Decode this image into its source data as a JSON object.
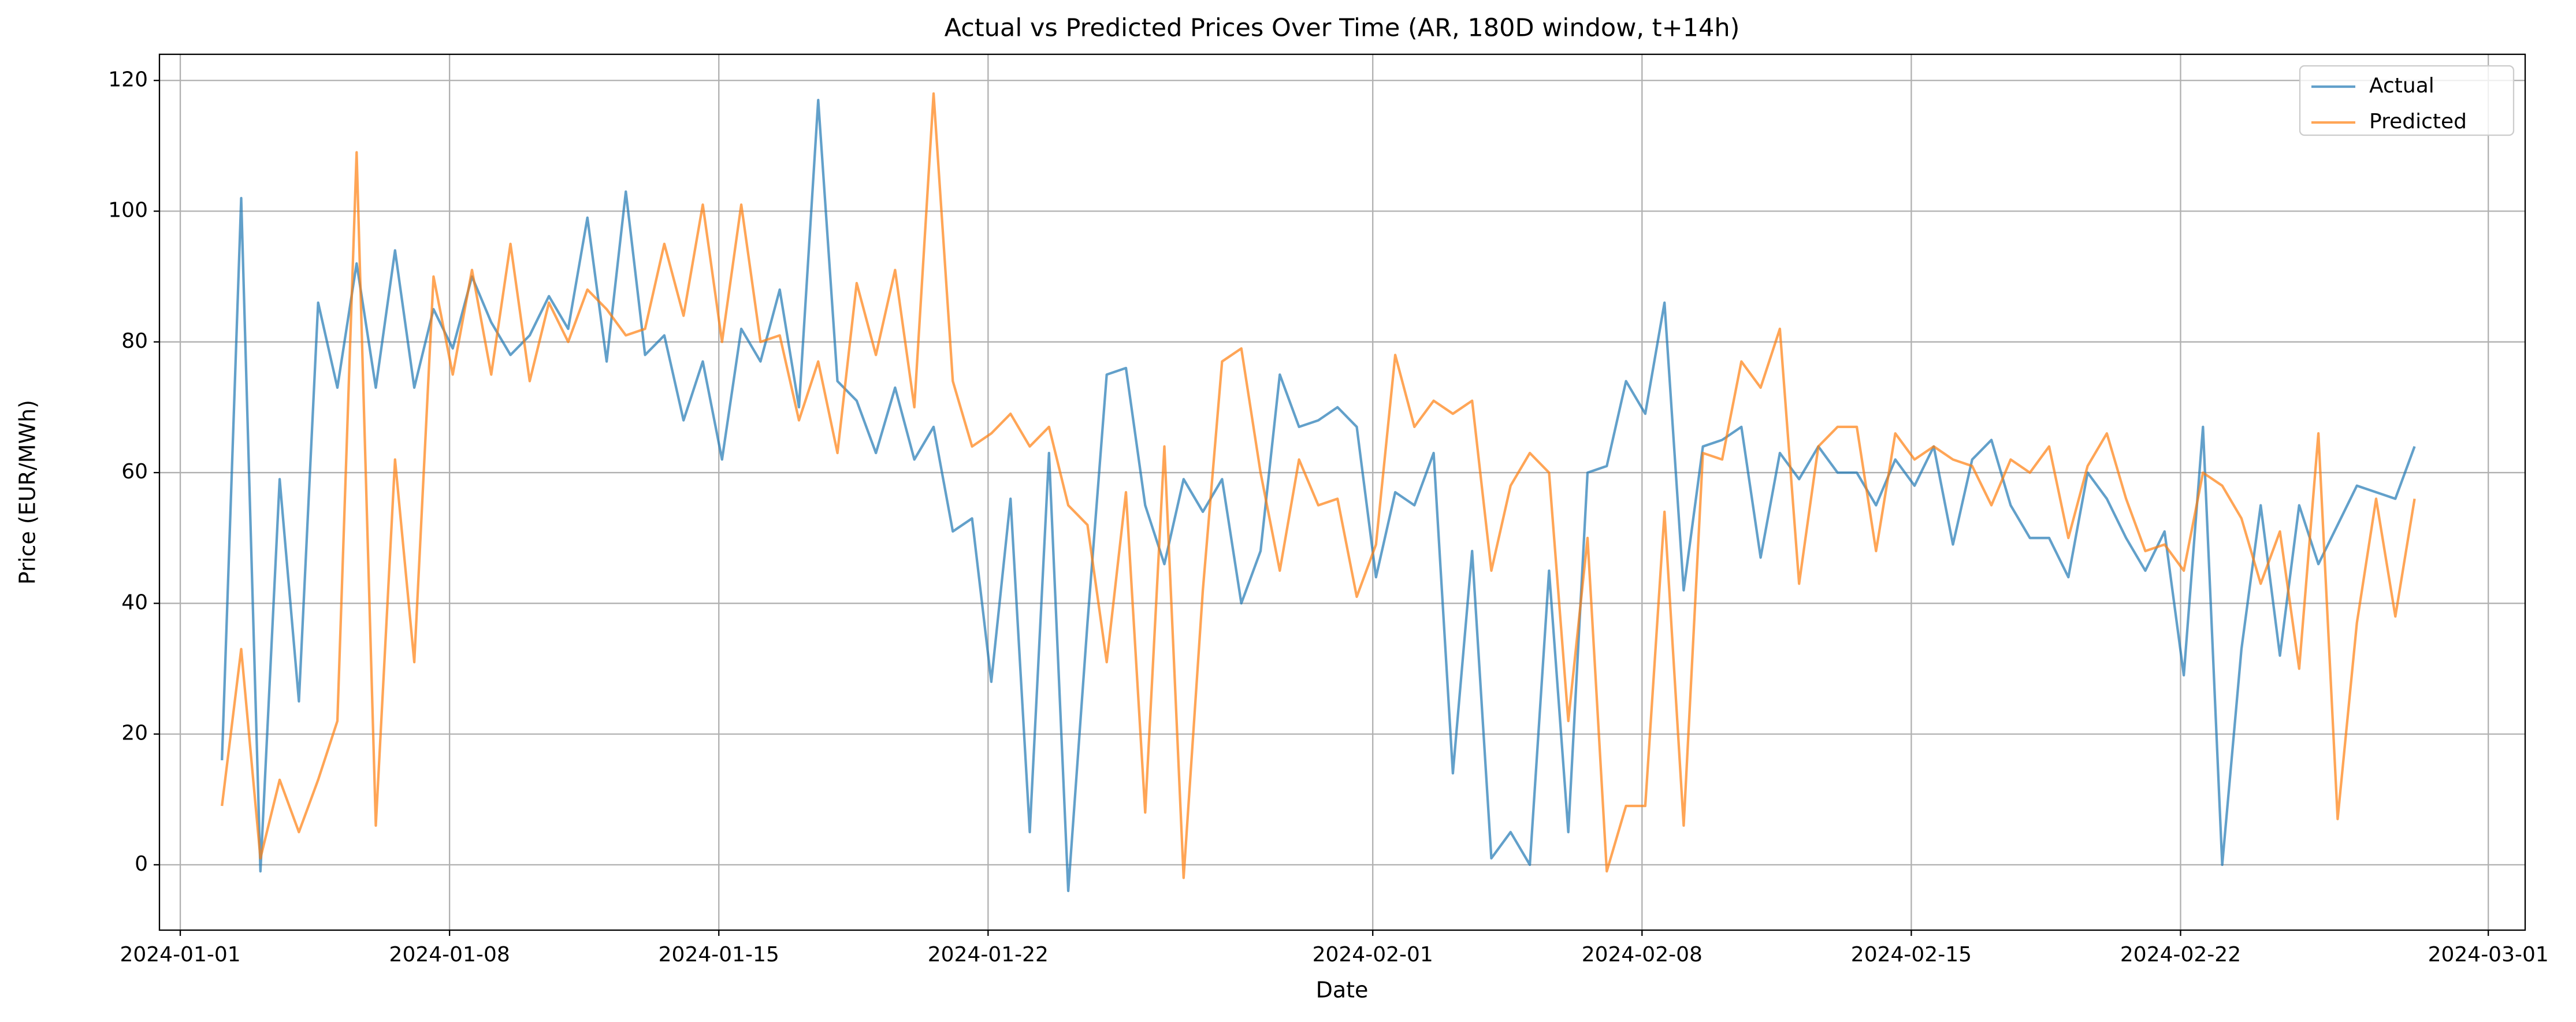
{
  "chart_data": {
    "type": "line",
    "title": "Actual vs Predicted Prices Over Time (AR, 180D window, t+14h)",
    "x_label": "Date",
    "y_label": "Price (EUR/MWh)",
    "grid": true,
    "legend": "upper right",
    "alpha": 0.7,
    "xlim": [
      "2023-12-31 11:00",
      "2024-03-01 23:00"
    ],
    "ylim": [
      -10,
      124
    ],
    "xticks": [
      "2024-01-01",
      "2024-01-08",
      "2024-01-15",
      "2024-01-22",
      "2024-02-01",
      "2024-02-08",
      "2024-02-15",
      "2024-02-22",
      "2024-03-01"
    ],
    "yticks": [
      0,
      20,
      40,
      60,
      80,
      100,
      120
    ],
    "x": [
      "2024-01-02 02:00",
      "2024-01-02 14:00",
      "2024-01-03 02:00",
      "2024-01-03 14:00",
      "2024-01-04 02:00",
      "2024-01-04 14:00",
      "2024-01-05 02:00",
      "2024-01-05 14:00",
      "2024-01-06 02:00",
      "2024-01-06 14:00",
      "2024-01-07 02:00",
      "2024-01-07 14:00",
      "2024-01-08 02:00",
      "2024-01-08 14:00",
      "2024-01-09 02:00",
      "2024-01-09 14:00",
      "2024-01-10 02:00",
      "2024-01-10 14:00",
      "2024-01-11 02:00",
      "2024-01-11 14:00",
      "2024-01-12 02:00",
      "2024-01-12 14:00",
      "2024-01-13 02:00",
      "2024-01-13 14:00",
      "2024-01-14 02:00",
      "2024-01-14 14:00",
      "2024-01-15 02:00",
      "2024-01-15 14:00",
      "2024-01-16 02:00",
      "2024-01-16 14:00",
      "2024-01-17 02:00",
      "2024-01-17 14:00",
      "2024-01-18 02:00",
      "2024-01-18 14:00",
      "2024-01-19 02:00",
      "2024-01-19 14:00",
      "2024-01-20 02:00",
      "2024-01-20 14:00",
      "2024-01-21 02:00",
      "2024-01-21 14:00",
      "2024-01-22 02:00",
      "2024-01-22 14:00",
      "2024-01-23 02:00",
      "2024-01-23 14:00",
      "2024-01-24 02:00",
      "2024-01-24 14:00",
      "2024-01-25 02:00",
      "2024-01-25 14:00",
      "2024-01-26 02:00",
      "2024-01-26 14:00",
      "2024-01-27 02:00",
      "2024-01-27 14:00",
      "2024-01-28 02:00",
      "2024-01-28 14:00",
      "2024-01-29 02:00",
      "2024-01-29 14:00",
      "2024-01-30 02:00",
      "2024-01-30 14:00",
      "2024-01-31 02:00",
      "2024-01-31 14:00",
      "2024-02-01 02:00",
      "2024-02-01 14:00",
      "2024-02-02 02:00",
      "2024-02-02 14:00",
      "2024-02-03 02:00",
      "2024-02-03 14:00",
      "2024-02-04 02:00",
      "2024-02-04 14:00",
      "2024-02-05 02:00",
      "2024-02-05 14:00",
      "2024-02-06 02:00",
      "2024-02-06 14:00",
      "2024-02-07 02:00",
      "2024-02-07 14:00",
      "2024-02-08 02:00",
      "2024-02-08 14:00",
      "2024-02-09 02:00",
      "2024-02-09 14:00",
      "2024-02-10 02:00",
      "2024-02-10 14:00",
      "2024-02-11 02:00",
      "2024-02-11 14:00",
      "2024-02-12 02:00",
      "2024-02-12 14:00",
      "2024-02-13 02:00",
      "2024-02-13 14:00",
      "2024-02-14 02:00",
      "2024-02-14 14:00",
      "2024-02-15 02:00",
      "2024-02-15 14:00",
      "2024-02-16 02:00",
      "2024-02-16 14:00",
      "2024-02-17 02:00",
      "2024-02-17 14:00",
      "2024-02-18 02:00",
      "2024-02-18 14:00",
      "2024-02-19 02:00",
      "2024-02-19 14:00",
      "2024-02-20 02:00",
      "2024-02-20 14:00",
      "2024-02-21 02:00",
      "2024-02-21 14:00",
      "2024-02-22 02:00",
      "2024-02-22 14:00",
      "2024-02-23 02:00",
      "2024-02-23 14:00",
      "2024-02-24 02:00",
      "2024-02-24 14:00",
      "2024-02-25 02:00",
      "2024-02-25 14:00",
      "2024-02-26 02:00",
      "2024-02-26 14:00",
      "2024-02-27 02:00",
      "2024-02-27 14:00",
      "2024-02-28 02:00"
    ],
    "series": [
      {
        "name": "Actual",
        "color": "#1f77b4",
        "values": [
          16,
          102,
          -1,
          59,
          25,
          86,
          73,
          92,
          73,
          94,
          73,
          85,
          79,
          90,
          83,
          78,
          81,
          87,
          82,
          99,
          77,
          103,
          78,
          81,
          68,
          77,
          62,
          82,
          77,
          88,
          70,
          117,
          74,
          71,
          63,
          73,
          62,
          67,
          51,
          53,
          28,
          56,
          5,
          63,
          -4,
          37,
          75,
          76,
          55,
          46,
          59,
          54,
          59,
          40,
          48,
          75,
          67,
          68,
          70,
          67,
          44,
          57,
          55,
          63,
          14,
          48,
          1,
          5,
          0,
          45,
          5,
          60,
          61,
          74,
          69,
          86,
          42,
          64,
          65,
          67,
          47,
          63,
          59,
          64,
          60,
          60,
          55,
          62,
          58,
          64,
          49,
          62,
          65,
          55,
          50,
          50,
          44,
          60,
          56,
          50,
          45,
          51,
          29,
          67,
          0,
          33,
          55,
          32,
          55,
          46,
          52,
          58,
          57,
          56,
          64
        ]
      },
      {
        "name": "Predicted",
        "color": "#ff7f0e",
        "values": [
          9,
          33,
          1,
          13,
          5,
          13,
          22,
          109,
          6,
          62,
          31,
          90,
          75,
          91,
          75,
          95,
          74,
          86,
          80,
          88,
          85,
          81,
          82,
          95,
          84,
          101,
          80,
          101,
          80,
          81,
          68,
          77,
          63,
          89,
          78,
          91,
          70,
          118,
          74,
          64,
          66,
          69,
          64,
          67,
          55,
          52,
          31,
          57,
          8,
          64,
          -2,
          42,
          77,
          79,
          60,
          45,
          62,
          55,
          56,
          41,
          49,
          78,
          67,
          71,
          69,
          71,
          45,
          58,
          63,
          60,
          22,
          50,
          -1,
          9,
          9,
          54,
          6,
          63,
          62,
          77,
          73,
          82,
          43,
          64,
          67,
          67,
          48,
          66,
          62,
          64,
          62,
          61,
          55,
          62,
          60,
          64,
          50,
          61,
          66,
          56,
          48,
          49,
          45,
          60,
          58,
          53,
          43,
          51,
          30,
          66,
          7,
          37,
          56,
          38,
          56
        ]
      }
    ]
  }
}
